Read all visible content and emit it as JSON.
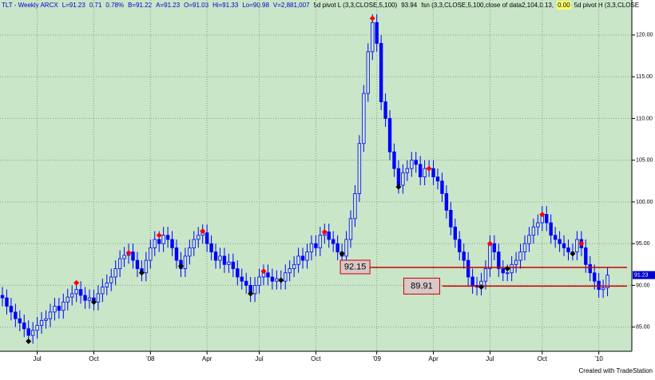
{
  "chart_data": {
    "type": "candlestick",
    "title": "TLT - Weekly ARCX",
    "header_stats": [
      "L=91.23",
      "0.71",
      "0.78%",
      "B=91.22",
      "A=91.23",
      "O=91.03",
      "Hi=91.33",
      "Lo=90.98",
      "V=2,881,007"
    ],
    "pivot_value": "93.94",
    "fsn_label": "fsn (3,3,CLOSE,5,100,close of data2,104,0.13,",
    "fsn_tail": "0.00",
    "footer": "Created with TradeStation",
    "color": "#0000ff",
    "background": "#c9e6c9",
    "grid": true,
    "categories": [
      null,
      null,
      null,
      null,
      null,
      null,
      null,
      null,
      "Jul",
      null,
      null,
      null,
      null,
      null,
      null,
      null,
      null,
      null,
      null,
      null,
      null,
      "Oct",
      null,
      null,
      null,
      null,
      null,
      null,
      null,
      null,
      null,
      null,
      null,
      null,
      "'08",
      null,
      null,
      null,
      null,
      null,
      null,
      null,
      null,
      null,
      null,
      null,
      null,
      "Apr",
      null,
      null,
      null,
      null,
      null,
      null,
      null,
      null,
      null,
      null,
      null,
      "Jul",
      null,
      null,
      null,
      null,
      null,
      null,
      null,
      null,
      null,
      null,
      null,
      null,
      "Oct",
      null,
      null,
      null,
      null,
      null,
      null,
      null,
      null,
      null,
      null,
      null,
      null,
      null,
      "'09",
      null,
      null,
      null,
      null,
      null,
      null,
      null,
      null,
      null,
      null,
      null,
      null,
      "Apr",
      null,
      null,
      null,
      null,
      null,
      null,
      null,
      null,
      null,
      null,
      null,
      null,
      "Jul",
      null,
      null,
      null,
      null,
      null,
      null,
      null,
      null,
      null,
      null,
      null,
      "Oct",
      null,
      null,
      null,
      null,
      null,
      null,
      null,
      null,
      null,
      null,
      null,
      null,
      "'10",
      null,
      null
    ],
    "open": [
      88.8,
      88.5,
      87.5,
      86.8,
      86,
      85.5,
      84.8,
      84,
      84.6,
      85.2,
      85.8,
      86,
      86.8,
      87.5,
      87,
      88,
      88.6,
      89,
      89.5,
      88.8,
      88.2,
      88.5,
      88,
      89,
      89.8,
      90.3,
      91,
      92,
      93.2,
      93.6,
      94,
      93,
      92,
      91.5,
      93,
      94.5,
      95.5,
      95,
      96,
      95.5,
      94.5,
      93,
      92,
      93.5,
      94.5,
      95.5,
      96,
      96.3,
      95,
      94,
      93,
      93.5,
      92.5,
      92.8,
      92,
      91,
      90.5,
      90,
      89,
      90,
      91,
      91.5,
      91,
      90.5,
      90.8,
      90.5,
      91.5,
      92,
      92.5,
      93.5,
      93,
      94,
      95,
      94.5,
      96,
      96.4,
      95.5,
      95,
      94,
      93.5,
      95.5,
      98,
      101,
      107,
      113,
      118,
      121.5,
      119,
      112,
      110,
      106,
      104,
      102,
      103.5,
      104,
      105,
      104.5,
      103,
      104,
      104,
      103,
      102.5,
      101,
      99,
      97,
      95.5,
      94,
      93,
      91,
      90,
      89.8,
      90.5,
      92,
      95,
      94,
      92,
      91.5,
      91.5,
      92.5,
      93,
      94,
      95,
      96,
      97,
      97.5,
      98.5,
      97.5,
      96,
      95.5,
      95,
      94.5,
      94,
      94,
      95.5,
      94.5,
      92.5,
      91.5,
      90.5,
      89.5,
      89.7
    ],
    "high": [
      89.8,
      89.5,
      88.5,
      87.8,
      87,
      86.5,
      85.8,
      85.6,
      86.2,
      86.8,
      87,
      87.8,
      88.5,
      88.5,
      89,
      89.6,
      90,
      90.5,
      90.5,
      89.8,
      89.5,
      89.5,
      90,
      90.8,
      91.3,
      92,
      93,
      94.2,
      94.6,
      95,
      95,
      94,
      93,
      94,
      95.5,
      96.5,
      96.5,
      97,
      97,
      96.5,
      95.5,
      94,
      94.5,
      95.5,
      96.5,
      97,
      97.3,
      97.3,
      96,
      95,
      94.5,
      94.5,
      93.8,
      93.8,
      93,
      92,
      91.5,
      91,
      91,
      92,
      92.5,
      92.5,
      92,
      91.8,
      91.8,
      92.5,
      93,
      93.5,
      94.5,
      94.5,
      95,
      96,
      96,
      97,
      97.4,
      97.4,
      96.5,
      96,
      95,
      96.5,
      99,
      102,
      108,
      114,
      119,
      122.5,
      122.5,
      120,
      113,
      111,
      107,
      105,
      104.5,
      105,
      106,
      106,
      105.5,
      105,
      105,
      105,
      104,
      103.5,
      102,
      100,
      98,
      96.5,
      95,
      94,
      92,
      91,
      91.5,
      93,
      96,
      96,
      95,
      93,
      92.5,
      93.5,
      94,
      95,
      96,
      97,
      98,
      98.5,
      99.5,
      99.5,
      98.5,
      97,
      96.5,
      96,
      95.5,
      95,
      96.5,
      96.5,
      95.5,
      93.5,
      92.5,
      91.5,
      90.7,
      92.2
    ],
    "low": [
      87.5,
      86.5,
      85.8,
      85,
      84.5,
      83.8,
      83,
      83,
      83.6,
      84.2,
      84.8,
      85,
      85.8,
      86,
      86,
      87,
      87.6,
      88,
      87.8,
      87.2,
      87.2,
      87,
      87,
      88,
      88.8,
      89.3,
      90,
      91,
      92.2,
      92.6,
      92,
      91,
      90.5,
      90.5,
      92,
      93.5,
      94,
      94,
      94.5,
      93.5,
      92,
      91,
      91,
      92.5,
      93.5,
      94.5,
      95,
      94,
      93,
      92,
      92,
      91.5,
      91.5,
      91,
      90,
      89.5,
      89,
      88,
      88,
      89,
      90,
      90,
      89.5,
      89.5,
      89.5,
      89.5,
      90.5,
      91,
      91.5,
      92,
      92,
      93,
      93.5,
      93.5,
      95,
      94.5,
      94,
      93,
      92.5,
      92.5,
      94.5,
      97,
      100,
      106,
      112,
      117,
      118,
      111,
      109,
      105,
      103,
      101,
      101,
      102.5,
      103,
      103.5,
      102,
      102,
      103,
      102,
      101.5,
      100,
      98,
      96,
      94.5,
      93,
      92,
      90,
      89,
      88.8,
      88.8,
      89.5,
      91,
      93,
      91,
      90.5,
      90.5,
      90.5,
      91.5,
      92,
      93,
      94,
      95,
      96,
      96.5,
      96.5,
      95,
      94.5,
      94,
      93.5,
      93,
      93,
      93,
      93.5,
      91.5,
      90.5,
      89.5,
      88.5,
      88.5,
      88.7
    ],
    "close": [
      88.5,
      87.5,
      86.8,
      86,
      85.5,
      84.8,
      84,
      84.6,
      85.2,
      85.8,
      86,
      86.8,
      87.5,
      87,
      88,
      88.6,
      89,
      89.5,
      88.8,
      88.2,
      88.5,
      88,
      89,
      89.8,
      90.3,
      91,
      92,
      93.2,
      93.6,
      94,
      93,
      92,
      91.5,
      93,
      94.5,
      95.5,
      95,
      96,
      95.5,
      94.5,
      93,
      92,
      93.5,
      94.5,
      95.5,
      96,
      96.3,
      95,
      94,
      93,
      93.5,
      92.5,
      92.8,
      92,
      91,
      90.5,
      90,
      89,
      90,
      91,
      91.5,
      91,
      90.5,
      90.8,
      90.5,
      91.5,
      92,
      92.5,
      93.5,
      93,
      94,
      95,
      94.5,
      96,
      96.4,
      95.5,
      95,
      94,
      93.5,
      95.5,
      98,
      101,
      107,
      113,
      118,
      121.5,
      119,
      112,
      110,
      106,
      104,
      102,
      103.5,
      104,
      105,
      104.5,
      103,
      104,
      104,
      103,
      102.5,
      101,
      99,
      97,
      95.5,
      94,
      93,
      91,
      90,
      89.8,
      90.5,
      92,
      95,
      94,
      92,
      91.5,
      91.5,
      92.5,
      93,
      94,
      95,
      96,
      97,
      97.5,
      98.5,
      97.5,
      96,
      95.5,
      95,
      94.5,
      94,
      94,
      95.5,
      94.5,
      92.5,
      91.5,
      90.5,
      89.5,
      89.7,
      91.23
    ],
    "series": [
      {
        "name": "5d pivot L (3,3,CLOSE,5,100)",
        "color": "#000000",
        "x": [
          6,
          21,
          32,
          41,
          57,
          64,
          78,
          91,
          110,
          116,
          131
        ],
        "values": [
          83.3,
          88,
          91.5,
          92.3,
          89,
          90.6,
          93.8,
          101.8,
          89.8,
          92,
          93.8
        ]
      },
      {
        "name": "5d pivot H (3,3,CLOSE",
        "color": "#ff0000",
        "x": [
          17,
          29,
          36,
          46,
          60,
          74,
          85,
          98,
          112,
          124,
          133
        ],
        "values": [
          90.3,
          93.9,
          96,
          96.5,
          91.7,
          96.4,
          122,
          104,
          95,
          98.5,
          95
        ]
      }
    ],
    "levels": [
      {
        "x": 78,
        "value": 92.15
      },
      {
        "x": 101,
        "value": 89.91
      }
    ],
    "last_price": 91.23,
    "ylim": [
      82.1,
      124.2
    ],
    "yticks": [
      {
        "value": 85,
        "label": "85.00"
      },
      {
        "value": 90,
        "label": "90.00"
      },
      {
        "value": 95,
        "label": "95.00"
      },
      {
        "value": 100,
        "label": "100.00"
      },
      {
        "value": 105,
        "label": "105.00"
      },
      {
        "value": 110,
        "label": "110.00"
      },
      {
        "value": 115,
        "label": "115.00"
      },
      {
        "value": 120,
        "label": "120.00"
      }
    ]
  }
}
